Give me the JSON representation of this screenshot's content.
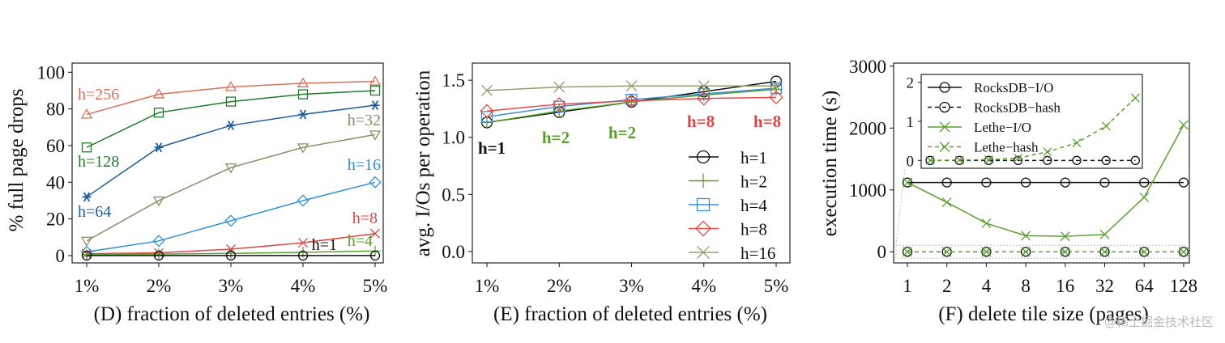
{
  "watermark": "@稀土掘金技术社区",
  "colors": {
    "h256": "#d4705a",
    "h128": "#1e7a2a",
    "h64": "#235d9b",
    "h32": "#8c8c66",
    "h16": "#2f8fd6",
    "h8": "#e04545",
    "h4": "#5a9e2f",
    "h1": "#111111",
    "e_h2": "#5a9e2f",
    "e_h4": "#3b8fd6",
    "e_h8": "#e84848",
    "e_h16": "#9a9a72",
    "lethe": "#5a9e2f",
    "rocks": "#111111"
  },
  "chart_data": [
    {
      "id": "D",
      "type": "line",
      "categories": [
        "1%",
        "2%",
        "3%",
        "4%",
        "5%"
      ],
      "xlabel": "(D) fraction of deleted entries (%)",
      "ylabel": "% full page drops",
      "ylim": [
        0,
        100
      ],
      "yticks": [
        0,
        20,
        40,
        60,
        80,
        100
      ],
      "series": [
        {
          "name": "h=256",
          "label": "h=256",
          "marker": "triangle",
          "color": "h256",
          "values": [
            77,
            88,
            92,
            94,
            95
          ]
        },
        {
          "name": "h=128",
          "label": "h=128",
          "marker": "square",
          "color": "h128",
          "values": [
            59,
            78,
            84,
            88,
            90
          ]
        },
        {
          "name": "h=64",
          "label": "h=64",
          "marker": "star",
          "color": "h64",
          "values": [
            32,
            59,
            71,
            77,
            82
          ]
        },
        {
          "name": "h=32",
          "label": "h=32",
          "marker": "triangle-down",
          "color": "h32",
          "values": [
            8,
            30,
            48,
            59,
            66
          ]
        },
        {
          "name": "h=16",
          "label": "h=16",
          "marker": "diamond",
          "color": "h16",
          "values": [
            2,
            8,
            19,
            30,
            40
          ]
        },
        {
          "name": "h=8",
          "label": "h=8",
          "marker": "x",
          "color": "h8",
          "values": [
            1,
            1.5,
            3.5,
            7,
            12
          ]
        },
        {
          "name": "h=4",
          "label": "h=4",
          "marker": "plus",
          "color": "h4",
          "values": [
            0.5,
            0.8,
            1.2,
            1.8,
            2.5
          ]
        },
        {
          "name": "h=1",
          "label": "h=1",
          "marker": "circle",
          "color": "h1",
          "values": [
            0,
            0,
            0,
            0,
            0
          ]
        }
      ]
    },
    {
      "id": "E",
      "type": "line",
      "categories": [
        "1%",
        "2%",
        "3%",
        "4%",
        "5%"
      ],
      "xlabel": "(E) fraction of deleted entries (%)",
      "ylabel": "avg. I/Os per operation",
      "ylim": [
        -0.1,
        1.65
      ],
      "yticks": [
        0.0,
        0.5,
        1.0,
        1.5
      ],
      "legend": "right",
      "series": [
        {
          "name": "h=1",
          "marker": "circle",
          "color": "h1",
          "values": [
            1.13,
            1.22,
            1.31,
            1.4,
            1.49
          ]
        },
        {
          "name": "h=2",
          "marker": "plus",
          "color": "e_h2",
          "values": [
            1.13,
            1.23,
            1.31,
            1.37,
            1.42
          ]
        },
        {
          "name": "h=4",
          "marker": "square",
          "color": "e_h4",
          "values": [
            1.18,
            1.27,
            1.33,
            1.38,
            1.43
          ]
        },
        {
          "name": "h=8",
          "marker": "diamond",
          "color": "e_h8",
          "values": [
            1.23,
            1.29,
            1.32,
            1.34,
            1.35
          ]
        },
        {
          "name": "h=16",
          "marker": "x",
          "color": "e_h16",
          "values": [
            1.41,
            1.44,
            1.45,
            1.45,
            1.45
          ]
        }
      ],
      "annotations": [
        {
          "text": "h=1",
          "color": "h1"
        },
        {
          "text": "h=2",
          "color": "h4"
        },
        {
          "text": "h=2",
          "color": "h4"
        },
        {
          "text": "h=8",
          "color": "h8"
        },
        {
          "text": "h=8",
          "color": "h8"
        }
      ]
    },
    {
      "id": "F",
      "type": "line",
      "categories": [
        "1",
        "2",
        "4",
        "8",
        "16",
        "32",
        "64",
        "128"
      ],
      "xlabel": "(F)  delete tile size (pages)",
      "ylabel": "execution time (s)",
      "ylim": [
        -200,
        3000
      ],
      "yticks": [
        0,
        1000,
        2000,
        3000
      ],
      "series": [
        {
          "name": "RocksDB−I/O",
          "marker": "circle",
          "dashed": false,
          "color": "rocks",
          "values": [
            1120,
            1120,
            1120,
            1120,
            1120,
            1120,
            1120,
            1120
          ]
        },
        {
          "name": "Lethe−I/O",
          "marker": "x",
          "dashed": false,
          "color": "lethe",
          "values": [
            1120,
            800,
            460,
            260,
            250,
            280,
            880,
            2050
          ]
        },
        {
          "name": "RocksDB−hash",
          "marker": "circle",
          "dashed": true,
          "color": "rocks",
          "values": [
            0,
            0,
            0,
            0,
            0,
            0,
            0,
            0
          ]
        },
        {
          "name": "Lethe−hash",
          "marker": "x",
          "dashed": true,
          "color": "lethe",
          "values": [
            0,
            0,
            0,
            0,
            0,
            0,
            0,
            0
          ]
        }
      ],
      "inset": {
        "ylim": [
          -0.2,
          2.2
        ],
        "yticks": [
          0,
          1,
          2
        ],
        "legend_order": [
          "RocksDB−I/O",
          "RocksDB−hash",
          "Lethe−I/O",
          "Lethe−hash"
        ],
        "series": [
          {
            "name": "RocksDB−hash",
            "marker": "circle",
            "dashed": true,
            "color": "rocks",
            "values": [
              0,
              0,
              0,
              0,
              0,
              0,
              0,
              0
            ]
          },
          {
            "name": "Lethe−hash",
            "marker": "x",
            "dashed": true,
            "color": "lethe",
            "values": [
              0,
              0.01,
              0.02,
              0.06,
              0.22,
              0.45,
              0.88,
              1.6
            ]
          }
        ]
      }
    }
  ]
}
